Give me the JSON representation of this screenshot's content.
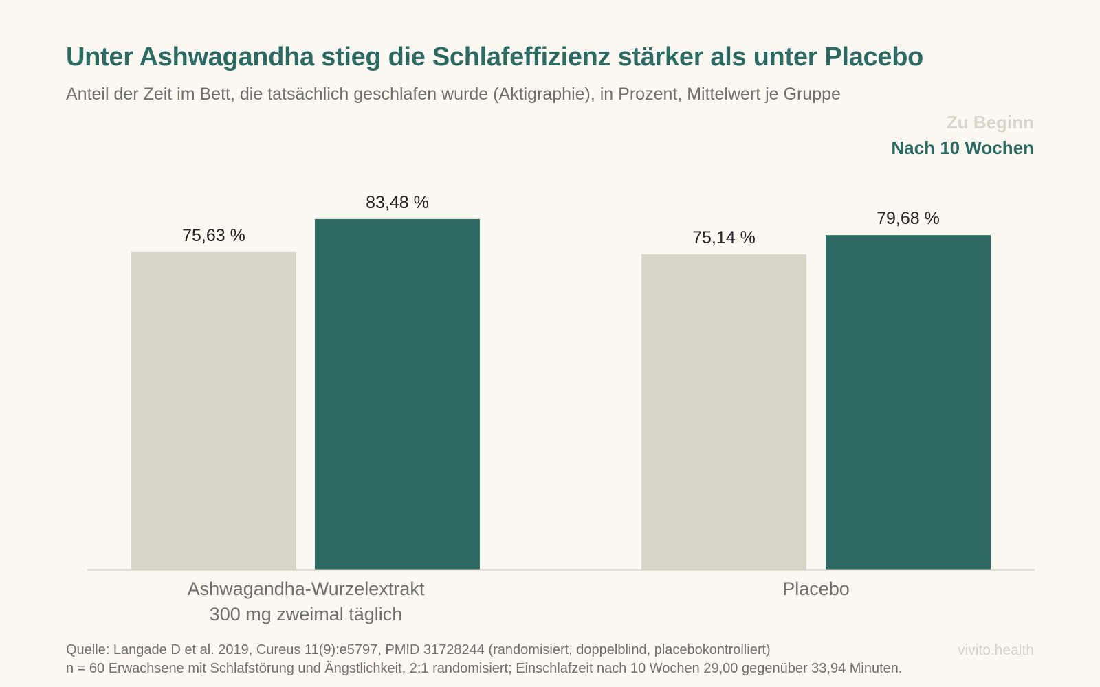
{
  "chart_data": {
    "type": "bar",
    "title": "Unter Ashwagandha stieg die Schlafeffizienz stärker als unter Placebo",
    "subtitle": "Anteil der Zeit im Bett, die tatsächlich geschlafen wurde (Aktigraphie), in Prozent, Mittelwert je Gruppe",
    "categories": [
      [
        "Ashwagandha-Wurzelextrakt",
        "300 mg zweimal täglich"
      ],
      [
        "Placebo"
      ]
    ],
    "series": [
      {
        "name": "Zu Beginn",
        "color": "#d9d5c9",
        "values": [
          75.63,
          75.14
        ],
        "labels": [
          "75,63 %",
          "75,14 %"
        ]
      },
      {
        "name": "Nach 10 Wochen",
        "color": "#2d6a63",
        "values": [
          83.48,
          79.68
        ],
        "labels": [
          "83,48 %",
          "79,68 %"
        ]
      }
    ],
    "ylim": [
      0,
      90
    ],
    "grid": false,
    "legend_position": "top-right"
  },
  "footer": {
    "source": "Quelle: Langade D et al. 2019, Cureus 11(9):e5797, PMID 31728244 (randomisiert, doppelblind, placebokontrolliert)",
    "note": "n = 60 Erwachsene mit Schlafstörung und Ängstlichkeit, 2:1 randomisiert; Einschlafzeit nach 10 Wochen 29,00 gegenüber 33,94 Minuten."
  },
  "brand": "vivito.health",
  "colors": {
    "title": "#2d6a63",
    "text": "#6f6f6c",
    "background": "#fbf8f2",
    "axis": "#cfcbc0"
  }
}
